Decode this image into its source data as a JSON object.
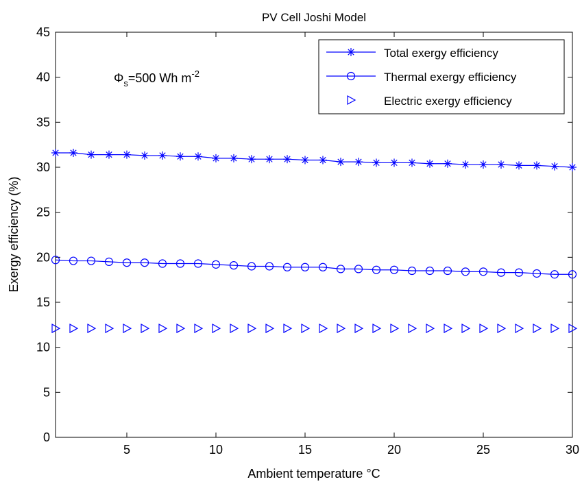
{
  "chart_data": {
    "type": "line",
    "title": "PV Cell Joshi Model",
    "xlabel": "Ambient temperature °C",
    "ylabel": "Exergy efficiency (%)",
    "xlim": [
      1,
      30
    ],
    "ylim": [
      0,
      45
    ],
    "xticks": [
      5,
      10,
      15,
      20,
      25,
      30
    ],
    "yticks": [
      0,
      5,
      10,
      15,
      20,
      25,
      30,
      35,
      40,
      45
    ],
    "grid": false,
    "legend_position": "top-right",
    "annotation": {
      "symbol": "Φ",
      "subscript": "s",
      "text": "=500 Wh m",
      "superscript": "-2"
    },
    "x": [
      1,
      2,
      3,
      4,
      5,
      6,
      7,
      8,
      9,
      10,
      11,
      12,
      13,
      14,
      15,
      16,
      17,
      18,
      19,
      20,
      21,
      22,
      23,
      24,
      25,
      26,
      27,
      28,
      29,
      30
    ],
    "series": [
      {
        "name": "Total exergy efficiency",
        "marker": "asterisk",
        "line": true,
        "color": "#0000ff",
        "values": [
          31.6,
          31.6,
          31.4,
          31.4,
          31.4,
          31.3,
          31.3,
          31.2,
          31.2,
          31.0,
          31.0,
          30.9,
          30.9,
          30.9,
          30.8,
          30.8,
          30.6,
          30.6,
          30.5,
          30.5,
          30.5,
          30.4,
          30.4,
          30.3,
          30.3,
          30.3,
          30.2,
          30.2,
          30.1,
          30.0
        ]
      },
      {
        "name": "Thermal exergy efficiency",
        "marker": "circle",
        "line": true,
        "color": "#0000ff",
        "values": [
          19.7,
          19.6,
          19.6,
          19.5,
          19.4,
          19.4,
          19.3,
          19.3,
          19.3,
          19.2,
          19.1,
          19.0,
          19.0,
          18.9,
          18.9,
          18.9,
          18.7,
          18.7,
          18.6,
          18.6,
          18.5,
          18.5,
          18.5,
          18.4,
          18.4,
          18.3,
          18.3,
          18.2,
          18.1,
          18.1
        ]
      },
      {
        "name": "Electric exergy efficiency",
        "marker": "triangle-right",
        "line": false,
        "color": "#0000ff",
        "values": [
          12.1,
          12.1,
          12.1,
          12.1,
          12.1,
          12.1,
          12.1,
          12.1,
          12.1,
          12.1,
          12.1,
          12.1,
          12.1,
          12.1,
          12.1,
          12.1,
          12.1,
          12.1,
          12.1,
          12.1,
          12.1,
          12.1,
          12.1,
          12.1,
          12.1,
          12.1,
          12.1,
          12.1,
          12.1,
          12.1
        ]
      }
    ]
  }
}
